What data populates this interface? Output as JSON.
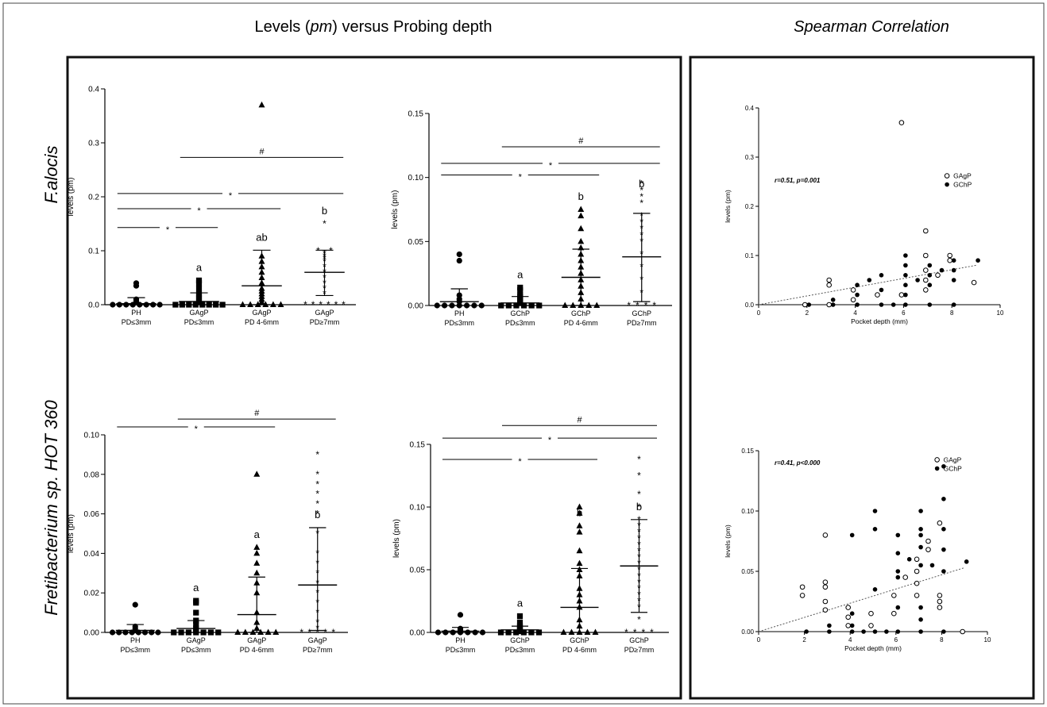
{
  "figure": {
    "header_left_prefix": "Levels (",
    "header_left_italic": "pm",
    "header_left_suffix": ") versus Probing depth",
    "header_right": "Spearman Correlation",
    "row_labels": [
      "F.alocis",
      "Fretibacterium sp. HOT 360"
    ]
  },
  "chart_data": [
    {
      "type": "scatter",
      "subtype": "dot-plot-mean-sd",
      "ylabel": "levels (pm)",
      "ylim": [
        0,
        0.4
      ],
      "yticks": [
        "0.0",
        "0.1",
        "0.2",
        "0.3",
        "0.4"
      ],
      "categories": [
        [
          "PH",
          "PD≤3mm"
        ],
        [
          "GAgP",
          "PD≤3mm"
        ],
        [
          "GAgP",
          "PD 4-6mm"
        ],
        [
          "GAgP",
          "PD≥7mm"
        ]
      ],
      "markers": [
        "circle",
        "square",
        "triangle",
        "star"
      ],
      "means": [
        0.002,
        0.006,
        0.035,
        0.06
      ],
      "sd_upper": [
        0.013,
        0.022,
        0.101,
        0.101
      ],
      "sd_lower": [
        0,
        0,
        0,
        0.017
      ],
      "values": [
        [
          0,
          0,
          0,
          0,
          0,
          0,
          0,
          0,
          0.005,
          0.008,
          0.01,
          0.035,
          0.04
        ],
        [
          0,
          0,
          0,
          0,
          0,
          0,
          0,
          0,
          0.005,
          0.01,
          0.015,
          0.02,
          0.03,
          0.04,
          0.045
        ],
        [
          0,
          0,
          0,
          0,
          0,
          0,
          0.005,
          0.01,
          0.015,
          0.02,
          0.025,
          0.03,
          0.04,
          0.05,
          0.06,
          0.07,
          0.08,
          0.09,
          0.37
        ],
        [
          0,
          0,
          0,
          0,
          0,
          0,
          0.02,
          0.03,
          0.04,
          0.05,
          0.06,
          0.07,
          0.08,
          0.085,
          0.09,
          0.095,
          0.1,
          0.1,
          0.15
        ]
      ],
      "letters": [
        "",
        "a",
        "ab",
        "b"
      ],
      "brackets": [
        {
          "from": 0,
          "to": 1,
          "y": 0.143,
          "symbol": "*"
        },
        {
          "from": 0,
          "to": 2,
          "y": 0.178,
          "symbol": "*"
        },
        {
          "from": 0,
          "to": 3,
          "y": 0.206,
          "symbol": "*"
        },
        {
          "from": 1,
          "to": 3,
          "y": 0.273,
          "symbol": "#"
        }
      ]
    },
    {
      "type": "scatter",
      "subtype": "dot-plot-mean-sd",
      "ylabel": "levels (pm)",
      "ylim": [
        0,
        0.15
      ],
      "yticks": [
        "0.00",
        "0.05",
        "0.10",
        "0.15"
      ],
      "categories": [
        [
          "PH",
          "PD≤3mm"
        ],
        [
          "GChP",
          "PD≤3mm"
        ],
        [
          "GChP",
          "PD 4-6mm"
        ],
        [
          "GChP",
          "PD≥7mm"
        ]
      ],
      "markers": [
        "circle",
        "square",
        "triangle",
        "star"
      ],
      "means": [
        0.003,
        0.002,
        0.022,
        0.038
      ],
      "sd_upper": [
        0.013,
        0.007,
        0.044,
        0.072
      ],
      "sd_lower": [
        0,
        0,
        0,
        0.003
      ],
      "values": [
        [
          0,
          0,
          0,
          0,
          0,
          0,
          0,
          0.003,
          0.005,
          0.008,
          0.035,
          0.04
        ],
        [
          0,
          0,
          0,
          0,
          0,
          0,
          0.002,
          0.003,
          0.004,
          0.005,
          0.007,
          0.008,
          0.012,
          0.014
        ],
        [
          0,
          0,
          0,
          0,
          0,
          0.005,
          0.01,
          0.015,
          0.02,
          0.025,
          0.03,
          0.035,
          0.04,
          0.045,
          0.05,
          0.06,
          0.07,
          0.075
        ],
        [
          0,
          0,
          0,
          0,
          0.01,
          0.02,
          0.03,
          0.04,
          0.05,
          0.055,
          0.06,
          0.065,
          0.07,
          0.08,
          0.085,
          0.09,
          0.095
        ]
      ],
      "letters": [
        "",
        "a",
        "b",
        "b"
      ],
      "brackets": [
        {
          "from": 0,
          "to": 2,
          "y": 0.102,
          "symbol": "*"
        },
        {
          "from": 0,
          "to": 3,
          "y": 0.111,
          "symbol": "*"
        },
        {
          "from": 1,
          "to": 3,
          "y": 0.124,
          "symbol": "#"
        }
      ]
    },
    {
      "type": "scatter",
      "subtype": "dot-plot-mean-sd",
      "ylabel": "levels (pm)",
      "ylim": [
        0,
        0.1
      ],
      "yticks": [
        "0.00",
        "0.02",
        "0.04",
        "0.06",
        "0.08",
        "0.10"
      ],
      "categories": [
        [
          "PH",
          "PD≤3mm"
        ],
        [
          "GAgP",
          "PD≤3mm"
        ],
        [
          "GAgP",
          "PD 4-6mm"
        ],
        [
          "GAgP",
          "PD≥7mm"
        ]
      ],
      "markers": [
        "circle",
        "square",
        "triangle",
        "star"
      ],
      "means": [
        0.001,
        0.002,
        0.009,
        0.024
      ],
      "sd_upper": [
        0.004,
        0.006,
        0.028,
        0.053
      ],
      "sd_lower": [
        0,
        0,
        0,
        0.001
      ],
      "values": [
        [
          0,
          0,
          0,
          0,
          0,
          0,
          0,
          0,
          0.001,
          0.002,
          0.003,
          0.014
        ],
        [
          0,
          0,
          0,
          0,
          0,
          0,
          0,
          0.001,
          0.002,
          0.004,
          0.006,
          0.01,
          0.015,
          0.016
        ],
        [
          0,
          0,
          0,
          0,
          0,
          0,
          0.002,
          0.005,
          0.01,
          0.02,
          0.025,
          0.03,
          0.035,
          0.04,
          0.043,
          0.08
        ],
        [
          0,
          0,
          0,
          0,
          0,
          0.002,
          0.005,
          0.01,
          0.015,
          0.02,
          0.025,
          0.03,
          0.035,
          0.04,
          0.05,
          0.06,
          0.065,
          0.07,
          0.075,
          0.08,
          0.09
        ]
      ],
      "letters": [
        "",
        "a",
        "a",
        "b"
      ],
      "brackets": [
        {
          "from": 0,
          "to": 2,
          "y": 0.104,
          "symbol": "*"
        },
        {
          "from": 1,
          "to": 3,
          "y": 0.108,
          "symbol": "#"
        }
      ]
    },
    {
      "type": "scatter",
      "subtype": "dot-plot-mean-sd",
      "ylabel": "levels (pm)",
      "ylim": [
        0,
        0.15
      ],
      "yticks": [
        "0.00",
        "0.05",
        "0.10",
        "0.15"
      ],
      "categories": [
        [
          "PH",
          "PD≤3mm"
        ],
        [
          "GChP",
          "PD≤3mm"
        ],
        [
          "GChP",
          "PD 4-6mm"
        ],
        [
          "GChP",
          "PD≥7mm"
        ]
      ],
      "markers": [
        "circle",
        "square",
        "triangle",
        "star"
      ],
      "means": [
        0.001,
        0.002,
        0.02,
        0.053
      ],
      "sd_upper": [
        0.004,
        0.005,
        0.051,
        0.09
      ],
      "sd_lower": [
        0,
        0,
        0,
        0.016
      ],
      "values": [
        [
          0,
          0,
          0,
          0,
          0,
          0,
          0,
          0.001,
          0.002,
          0.003,
          0.014
        ],
        [
          0,
          0,
          0,
          0,
          0,
          0,
          0.001,
          0.002,
          0.003,
          0.004,
          0.005,
          0.008,
          0.013
        ],
        [
          0,
          0,
          0,
          0,
          0,
          0.005,
          0.01,
          0.02,
          0.025,
          0.03,
          0.035,
          0.045,
          0.05,
          0.055,
          0.065,
          0.08,
          0.085,
          0.095,
          0.1
        ],
        [
          0,
          0,
          0,
          0,
          0.01,
          0.02,
          0.025,
          0.03,
          0.035,
          0.04,
          0.045,
          0.05,
          0.055,
          0.06,
          0.065,
          0.07,
          0.075,
          0.08,
          0.085,
          0.09,
          0.1,
          0.11,
          0.125,
          0.138
        ]
      ],
      "letters": [
        "",
        "a",
        "b",
        "b"
      ],
      "brackets": [
        {
          "from": 0,
          "to": 2,
          "y": 0.138,
          "symbol": "*"
        },
        {
          "from": 0,
          "to": 3,
          "y": 0.155,
          "symbol": "*"
        },
        {
          "from": 1,
          "to": 3,
          "y": 0.165,
          "symbol": "#"
        }
      ]
    },
    {
      "type": "scatter",
      "subtype": "correlation",
      "xlabel": "Pocket depth (mm)",
      "ylabel": "levels (pm)",
      "xlim": [
        0,
        10
      ],
      "ylim": [
        0,
        0.4
      ],
      "xticks": [
        "0",
        "2",
        "4",
        "6",
        "8",
        "10"
      ],
      "yticks": [
        "0.0",
        "0.1",
        "0.2",
        "0.3",
        "0.4"
      ],
      "annotation": "r=0.51, p=0.001",
      "trend": {
        "x": [
          0,
          9
        ],
        "y": [
          0,
          0.08
        ]
      },
      "series": [
        {
          "name": "GAgP",
          "marker": "open-circle",
          "points": [
            [
              2,
              0
            ],
            [
              3,
              0
            ],
            [
              3,
              0.04
            ],
            [
              3,
              0.05
            ],
            [
              4,
              0.01
            ],
            [
              4,
              0.03
            ],
            [
              5,
              0.02
            ],
            [
              6,
              0.37
            ],
            [
              6,
              0.02
            ],
            [
              7,
              0.03
            ],
            [
              7,
              0.05
            ],
            [
              7,
              0.07
            ],
            [
              7,
              0.1
            ],
            [
              7,
              0.15
            ],
            [
              7.5,
              0.06
            ],
            [
              8,
              0.09
            ],
            [
              8,
              0.1
            ],
            [
              9,
              0.045
            ]
          ]
        },
        {
          "name": "GChP",
          "marker": "filled-circle",
          "points": [
            [
              2,
              0
            ],
            [
              3,
              0
            ],
            [
              3,
              0.01
            ],
            [
              4,
              0
            ],
            [
              4,
              0.02
            ],
            [
              4,
              0.04
            ],
            [
              4.5,
              0.05
            ],
            [
              5,
              0
            ],
            [
              5,
              0.03
            ],
            [
              5,
              0.06
            ],
            [
              5.5,
              0
            ],
            [
              6,
              0
            ],
            [
              6,
              0.02
            ],
            [
              6,
              0.04
            ],
            [
              6,
              0.06
            ],
            [
              6,
              0.08
            ],
            [
              6,
              0.1
            ],
            [
              6.5,
              0.05
            ],
            [
              7,
              0
            ],
            [
              7,
              0.04
            ],
            [
              7,
              0.06
            ],
            [
              7,
              0.08
            ],
            [
              7.5,
              0.07
            ],
            [
              8,
              0
            ],
            [
              8,
              0.05
            ],
            [
              8,
              0.07
            ],
            [
              8,
              0.09
            ],
            [
              9,
              0.09
            ]
          ]
        }
      ]
    },
    {
      "type": "scatter",
      "subtype": "correlation",
      "xlabel": "Pocket depth (mm)",
      "ylabel": "levels (pm)",
      "xlim": [
        0,
        10
      ],
      "ylim": [
        0,
        0.15
      ],
      "xticks": [
        "0",
        "2",
        "4",
        "6",
        "8",
        "10"
      ],
      "yticks": [
        "0.00",
        "0.05",
        "0.10",
        "0.15"
      ],
      "annotation": "r=0.41, p<0.000",
      "trend": {
        "x": [
          0,
          9
        ],
        "y": [
          0,
          0.053
        ]
      },
      "series": [
        {
          "name": "GAgP",
          "marker": "open-circle",
          "points": [
            [
              2,
              0.03
            ],
            [
              2,
              0.037
            ],
            [
              3,
              0.018
            ],
            [
              3,
              0.025
            ],
            [
              3,
              0.037
            ],
            [
              3,
              0.041
            ],
            [
              3,
              0.08
            ],
            [
              4,
              0.005
            ],
            [
              4,
              0.012
            ],
            [
              4,
              0.02
            ],
            [
              5,
              0.005
            ],
            [
              5,
              0.015
            ],
            [
              6,
              0.015
            ],
            [
              6,
              0.03
            ],
            [
              6.5,
              0.045
            ],
            [
              7,
              0.03
            ],
            [
              7,
              0.04
            ],
            [
              7,
              0.05
            ],
            [
              7,
              0.06
            ],
            [
              7.5,
              0.068
            ],
            [
              7.5,
              0.075
            ],
            [
              8,
              0.02
            ],
            [
              8,
              0.025
            ],
            [
              8,
              0.03
            ],
            [
              8,
              0.09
            ],
            [
              9,
              0
            ]
          ]
        },
        {
          "name": "GChP",
          "marker": "filled-circle",
          "points": [
            [
              2,
              0
            ],
            [
              3,
              0
            ],
            [
              3,
              0.005
            ],
            [
              4,
              0
            ],
            [
              4,
              0.005
            ],
            [
              4,
              0.015
            ],
            [
              4,
              0.08
            ],
            [
              4.5,
              0
            ],
            [
              5,
              0
            ],
            [
              5,
              0.035
            ],
            [
              5,
              0.085
            ],
            [
              5,
              0.1
            ],
            [
              5.5,
              0
            ],
            [
              6,
              0
            ],
            [
              6,
              0.02
            ],
            [
              6,
              0.045
            ],
            [
              6,
              0.05
            ],
            [
              6,
              0.065
            ],
            [
              6,
              0.08
            ],
            [
              6.5,
              0.06
            ],
            [
              7,
              0
            ],
            [
              7,
              0.01
            ],
            [
              7,
              0.02
            ],
            [
              7,
              0.055
            ],
            [
              7,
              0.07
            ],
            [
              7,
              0.08
            ],
            [
              7,
              0.085
            ],
            [
              7,
              0.1
            ],
            [
              7.5,
              0.055
            ],
            [
              8,
              0
            ],
            [
              8,
              0.05
            ],
            [
              8,
              0.068
            ],
            [
              8,
              0.085
            ],
            [
              8,
              0.11
            ],
            [
              8,
              0.137
            ],
            [
              9,
              0.058
            ]
          ]
        }
      ]
    }
  ]
}
